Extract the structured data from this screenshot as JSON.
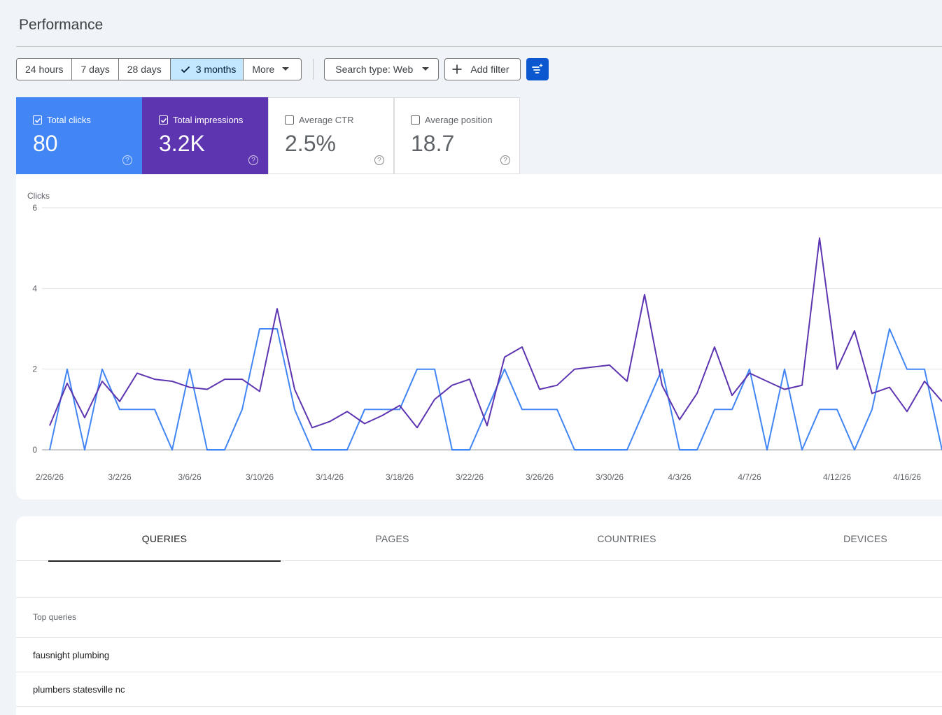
{
  "page": {
    "title": "Performance"
  },
  "toolbar": {
    "date_ranges": [
      "24 hours",
      "7 days",
      "28 days",
      "3 months",
      "More"
    ],
    "selected": "3 months",
    "search_type": "Search type: Web",
    "add_filter": "Add filter"
  },
  "metrics": {
    "clicks": {
      "label": "Total clicks",
      "value": "80",
      "checked": true,
      "color": "#4285f4"
    },
    "impressions": {
      "label": "Total impressions",
      "value": "3.2K",
      "checked": true,
      "color": "#5e35b1"
    },
    "ctr": {
      "label": "Average CTR",
      "value": "2.5%",
      "checked": false
    },
    "position": {
      "label": "Average position",
      "value": "18.7",
      "checked": false
    }
  },
  "chart_data": {
    "type": "line",
    "ylabel": "Clicks",
    "ylim": [
      0,
      6
    ],
    "yticks": [
      0,
      2,
      4,
      6
    ],
    "xticks": [
      "2/26/26",
      "3/2/26",
      "3/6/26",
      "3/10/26",
      "3/14/26",
      "3/18/26",
      "3/22/26",
      "3/26/26",
      "3/30/26",
      "4/3/26",
      "4/7/26",
      "4/12/26",
      "4/16/26"
    ],
    "xtick_day_index": [
      0,
      4,
      8,
      12,
      16,
      20,
      24,
      28,
      32,
      36,
      40,
      45,
      49
    ],
    "grid": true,
    "legend": "none",
    "series": [
      {
        "color": "#4285f4",
        "values": [
          0,
          2,
          0,
          2,
          1,
          1,
          1,
          0,
          2,
          0,
          0,
          1,
          3,
          3,
          1,
          0,
          0,
          0,
          1,
          1,
          1,
          2,
          2,
          0,
          0,
          1,
          2,
          1,
          1,
          1,
          0,
          0,
          0,
          0,
          1,
          2,
          0,
          0,
          1,
          1,
          2,
          0,
          2,
          0,
          1,
          1,
          0,
          1,
          3,
          2,
          2,
          0
        ]
      },
      {
        "color": "#5e35b1",
        "values": [
          0.6,
          1.65,
          0.8,
          1.7,
          1.2,
          1.9,
          1.75,
          1.7,
          1.55,
          1.5,
          1.75,
          1.75,
          1.45,
          3.5,
          1.5,
          0.55,
          0.7,
          0.95,
          0.65,
          0.85,
          1.1,
          0.55,
          1.25,
          1.6,
          1.75,
          0.6,
          2.3,
          2.55,
          1.5,
          1.6,
          2.0,
          2.05,
          2.1,
          1.7,
          3.85,
          1.6,
          0.75,
          1.4,
          2.55,
          1.35,
          1.9,
          1.7,
          1.5,
          1.6,
          5.25,
          2.0,
          2.95,
          1.4,
          1.55,
          0.95,
          1.7,
          1.2
        ]
      }
    ]
  },
  "table": {
    "tabs": [
      "QUERIES",
      "PAGES",
      "COUNTRIES",
      "DEVICES"
    ],
    "active_tab": "QUERIES",
    "header": "Top queries",
    "rows": [
      "fausnight plumbing",
      "plumbers statesville nc"
    ]
  }
}
